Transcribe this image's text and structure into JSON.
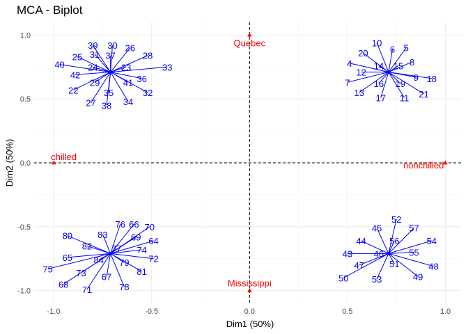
{
  "colors": {
    "individuals": "#0000ff",
    "variables": "#ff0000",
    "grid_major": "#ebebeb",
    "grid_minor": "#f5f5f5",
    "reference_line": "#000000"
  },
  "chart_data": {
    "type": "scatter",
    "title": "MCA - Biplot",
    "xlabel": "Dim1 (50%)",
    "ylabel": "Dim2 (50%)",
    "xlim": [
      -1.1,
      1.08
    ],
    "ylim": [
      -1.1,
      1.1
    ],
    "xticks": [
      -1.0,
      -0.5,
      0.0,
      0.5,
      1.0
    ],
    "yticks": [
      -1.0,
      -0.5,
      0.0,
      0.5,
      1.0
    ],
    "xtick_labels": [
      "-1.0",
      "-0.5",
      "0.0",
      "0.5",
      "1.0"
    ],
    "ytick_labels": [
      "-1.0",
      "-0.5",
      "0.0",
      "0.5",
      "1.0"
    ],
    "grid": true,
    "reference_lines": {
      "x": 0,
      "y": 0,
      "style": "dashed"
    },
    "variables": [
      {
        "label": "Quebec",
        "x": 0.0,
        "y": 1.0
      },
      {
        "label": "chilled",
        "x": -1.0,
        "y": 0.0
      },
      {
        "label": "nonchilled",
        "x": 1.0,
        "y": 0.0
      },
      {
        "label": "Mississippi",
        "x": 0.0,
        "y": -1.0
      }
    ],
    "individual_groups": [
      {
        "center": [
          -0.71,
          0.71
        ],
        "points": [
          {
            "label": "39",
            "x": -0.8,
            "y": 0.92
          },
          {
            "label": "30",
            "x": -0.7,
            "y": 0.92
          },
          {
            "label": "26",
            "x": -0.61,
            "y": 0.9
          },
          {
            "label": "28",
            "x": -0.52,
            "y": 0.84
          },
          {
            "label": "33",
            "x": -0.42,
            "y": 0.75
          },
          {
            "label": "31",
            "x": -0.79,
            "y": 0.85
          },
          {
            "label": "37",
            "x": -0.71,
            "y": 0.84
          },
          {
            "label": "25",
            "x": -0.88,
            "y": 0.83
          },
          {
            "label": "40",
            "x": -0.97,
            "y": 0.77
          },
          {
            "label": "24",
            "x": -0.8,
            "y": 0.75
          },
          {
            "label": "23",
            "x": -0.63,
            "y": 0.75
          },
          {
            "label": "42",
            "x": -0.89,
            "y": 0.69
          },
          {
            "label": "36",
            "x": -0.55,
            "y": 0.66
          },
          {
            "label": "29",
            "x": -0.79,
            "y": 0.63
          },
          {
            "label": "41",
            "x": -0.62,
            "y": 0.63
          },
          {
            "label": "22",
            "x": -0.9,
            "y": 0.57
          },
          {
            "label": "35",
            "x": -0.72,
            "y": 0.55
          },
          {
            "label": "32",
            "x": -0.52,
            "y": 0.55
          },
          {
            "label": "27",
            "x": -0.81,
            "y": 0.47
          },
          {
            "label": "38",
            "x": -0.73,
            "y": 0.45
          },
          {
            "label": "34",
            "x": -0.62,
            "y": 0.48
          }
        ]
      },
      {
        "center": [
          0.71,
          0.71
        ],
        "points": [
          {
            "label": "10",
            "x": 0.65,
            "y": 0.94
          },
          {
            "label": "6",
            "x": 0.73,
            "y": 0.89
          },
          {
            "label": "5",
            "x": 0.8,
            "y": 0.9
          },
          {
            "label": "20",
            "x": 0.58,
            "y": 0.86
          },
          {
            "label": "4",
            "x": 0.51,
            "y": 0.78
          },
          {
            "label": "8",
            "x": 0.83,
            "y": 0.79
          },
          {
            "label": "14",
            "x": 0.66,
            "y": 0.76
          },
          {
            "label": "15",
            "x": 0.76,
            "y": 0.76
          },
          {
            "label": "12",
            "x": 0.57,
            "y": 0.71
          },
          {
            "label": "9",
            "x": 0.85,
            "y": 0.67
          },
          {
            "label": "18",
            "x": 0.93,
            "y": 0.66
          },
          {
            "label": "7",
            "x": 0.5,
            "y": 0.63
          },
          {
            "label": "16",
            "x": 0.66,
            "y": 0.62
          },
          {
            "label": "19",
            "x": 0.77,
            "y": 0.62
          },
          {
            "label": "13",
            "x": 0.56,
            "y": 0.55
          },
          {
            "label": "17",
            "x": 0.67,
            "y": 0.51
          },
          {
            "label": "11",
            "x": 0.79,
            "y": 0.51
          },
          {
            "label": "21",
            "x": 0.89,
            "y": 0.54
          }
        ]
      },
      {
        "center": [
          -0.71,
          -0.71
        ],
        "points": [
          {
            "label": "76",
            "x": -0.66,
            "y": -0.48
          },
          {
            "label": "66",
            "x": -0.59,
            "y": -0.48
          },
          {
            "label": "70",
            "x": -0.51,
            "y": -0.5
          },
          {
            "label": "83",
            "x": -0.75,
            "y": -0.56
          },
          {
            "label": "80",
            "x": -0.93,
            "y": -0.57
          },
          {
            "label": "69",
            "x": -0.58,
            "y": -0.58
          },
          {
            "label": "64",
            "x": -0.49,
            "y": -0.61
          },
          {
            "label": "82",
            "x": -0.83,
            "y": -0.65
          },
          {
            "label": "77",
            "x": -0.68,
            "y": -0.67
          },
          {
            "label": "74",
            "x": -0.55,
            "y": -0.68
          },
          {
            "label": "65",
            "x": -0.93,
            "y": -0.74
          },
          {
            "label": "72",
            "x": -0.49,
            "y": -0.75
          },
          {
            "label": "84",
            "x": -0.77,
            "y": -0.76
          },
          {
            "label": "79",
            "x": -0.64,
            "y": -0.78
          },
          {
            "label": "75",
            "x": -1.03,
            "y": -0.83
          },
          {
            "label": "73",
            "x": -0.86,
            "y": -0.86
          },
          {
            "label": "81",
            "x": -0.55,
            "y": -0.85
          },
          {
            "label": "67",
            "x": -0.73,
            "y": -0.89
          },
          {
            "label": "68",
            "x": -0.95,
            "y": -0.95
          },
          {
            "label": "71",
            "x": -0.83,
            "y": -0.99
          },
          {
            "label": "78",
            "x": -0.64,
            "y": -0.97
          }
        ]
      },
      {
        "center": [
          0.71,
          -0.71
        ],
        "points": [
          {
            "label": "52",
            "x": 0.75,
            "y": -0.44
          },
          {
            "label": "57",
            "x": 0.84,
            "y": -0.51
          },
          {
            "label": "45",
            "x": 0.65,
            "y": -0.51
          },
          {
            "label": "44",
            "x": 0.57,
            "y": -0.61
          },
          {
            "label": "56",
            "x": 0.74,
            "y": -0.61
          },
          {
            "label": "54",
            "x": 0.93,
            "y": -0.61
          },
          {
            "label": "43",
            "x": 0.5,
            "y": -0.71
          },
          {
            "label": "46",
            "x": 0.66,
            "y": -0.71
          },
          {
            "label": "55",
            "x": 0.84,
            "y": -0.7
          },
          {
            "label": "47",
            "x": 0.56,
            "y": -0.8
          },
          {
            "label": "51",
            "x": 0.74,
            "y": -0.79
          },
          {
            "label": "48",
            "x": 0.94,
            "y": -0.81
          },
          {
            "label": "50",
            "x": 0.48,
            "y": -0.9
          },
          {
            "label": "53",
            "x": 0.65,
            "y": -0.91
          },
          {
            "label": "49",
            "x": 0.86,
            "y": -0.89
          }
        ]
      }
    ]
  }
}
